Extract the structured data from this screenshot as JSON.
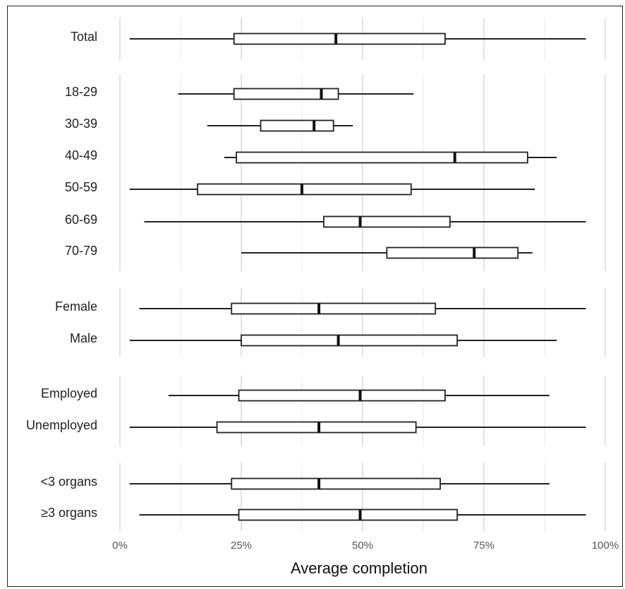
{
  "chart_data": {
    "type": "boxplot",
    "orientation": "horizontal",
    "xlabel": "Average completion",
    "xlim": [
      0,
      100
    ],
    "x_ticks": [
      "0%",
      "25%",
      "50%",
      "75%",
      "100%"
    ],
    "x_tick_values": [
      0,
      25,
      50,
      75,
      100
    ],
    "grid": true,
    "groups": [
      {
        "items": [
          {
            "label": "Total",
            "min": 2,
            "q1": 23.5,
            "median": 44.5,
            "q3": 67,
            "max": 96
          }
        ]
      },
      {
        "items": [
          {
            "label": "18-29",
            "min": 12,
            "q1": 23.5,
            "median": 41.5,
            "q3": 45,
            "max": 60.5
          },
          {
            "label": "30-39",
            "min": 18,
            "q1": 29,
            "median": 40,
            "q3": 44,
            "max": 48
          },
          {
            "label": "40-49",
            "min": 21.5,
            "q1": 24,
            "median": 69,
            "q3": 84,
            "max": 90
          },
          {
            "label": "50-59",
            "min": 2,
            "q1": 16,
            "median": 37.5,
            "q3": 60,
            "max": 85.5
          },
          {
            "label": "60-69",
            "min": 5,
            "q1": 42,
            "median": 49.5,
            "q3": 68,
            "max": 96
          },
          {
            "label": "70-79",
            "min": 25,
            "q1": 55,
            "median": 73,
            "q3": 82,
            "max": 85
          }
        ]
      },
      {
        "items": [
          {
            "label": "Female",
            "min": 4,
            "q1": 23,
            "median": 41,
            "q3": 65,
            "max": 96
          },
          {
            "label": "Male",
            "min": 2,
            "q1": 25,
            "median": 45,
            "q3": 69.5,
            "max": 90
          }
        ]
      },
      {
        "items": [
          {
            "label": "Employed",
            "min": 10,
            "q1": 24.5,
            "median": 49.5,
            "q3": 67,
            "max": 88.5
          },
          {
            "label": "Unemployed",
            "min": 2,
            "q1": 20,
            "median": 41,
            "q3": 61,
            "max": 96
          }
        ]
      },
      {
        "items": [
          {
            "label": "<3 organs",
            "min": 2,
            "q1": 23,
            "median": 41,
            "q3": 66,
            "max": 88.5
          },
          {
            "label": "≥3 organs",
            "min": 4,
            "q1": 24.5,
            "median": 49.5,
            "q3": 69.5,
            "max": 96
          }
        ]
      }
    ]
  }
}
